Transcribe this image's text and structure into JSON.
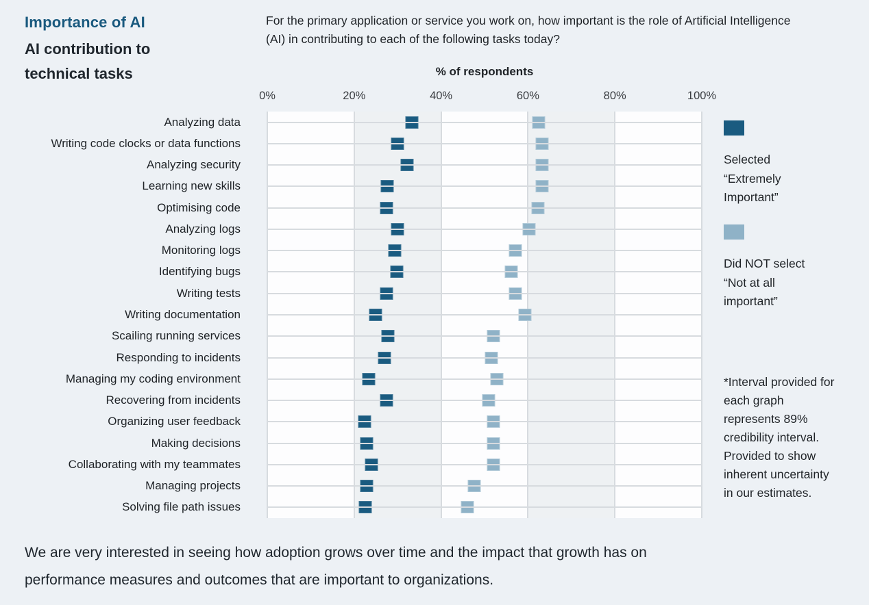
{
  "page": {
    "background": "#edf1f5"
  },
  "header": {
    "kicker": "Importance of AI",
    "title": "AI contribution to technical tasks",
    "question": "For the primary application or service you work on, how important is the role of Artificial Intelligence (AI) in contributing to each of the following tasks today?"
  },
  "chart_data": {
    "type": "interval",
    "axis_title": "% of respondents",
    "x_ticks": [
      "0%",
      "20%",
      "40%",
      "60%",
      "80%",
      "100%"
    ],
    "xlim": [
      0,
      100
    ],
    "interval_width_pct": 3,
    "grid": "vertical bands every 20%, horizontal rule per category",
    "legend_position": "right",
    "categories": [
      "Analyzing data",
      "Writing code clocks or data functions",
      "Analyzing security",
      "Learning new skills",
      "Optimising code",
      "Analyzing logs",
      "Monitoring logs",
      "Identifying bugs",
      "Writing tests",
      "Writing documentation",
      "Scailing running services",
      "Responding to incidents",
      "Managing my coding environment",
      "Recovering from incidents",
      "Organizing user feedback",
      "Making decisions",
      "Collaborating with my teammates",
      "Managing projects",
      "Solving file path issues"
    ],
    "series": [
      {
        "name": "Selected “Extremely Important”",
        "color": "#1a5b80",
        "values": [
          33.3,
          29.9,
          32.1,
          27.6,
          27.4,
          30.0,
          29.4,
          29.8,
          27.4,
          24.9,
          27.7,
          27.0,
          23.3,
          27.4,
          22.4,
          22.8,
          24.0,
          22.9,
          22.6
        ]
      },
      {
        "name": "Did NOT select “Not at all important”",
        "color": "#8fb2c7",
        "values": [
          62.4,
          63.3,
          63.2,
          63.3,
          62.3,
          60.3,
          57.1,
          56.1,
          57.1,
          59.3,
          52.1,
          51.6,
          52.8,
          50.9,
          52.0,
          52.0,
          52.0,
          47.6,
          46.1
        ]
      }
    ]
  },
  "legend": {
    "items": [
      {
        "label": "Selected “Extremely Important”",
        "color": "#1a5b80"
      },
      {
        "label": "Did NOT select “Not at all important”",
        "color": "#8fb2c7"
      }
    ]
  },
  "footnote": "*Interval provided for each graph represents 89% credibility interval. Provided to show inherent uncertainty in our estimates.",
  "caption": "We are very interested in seeing how adoption grows over time and the impact that growth has on performance measures and outcomes that are important to organizations."
}
